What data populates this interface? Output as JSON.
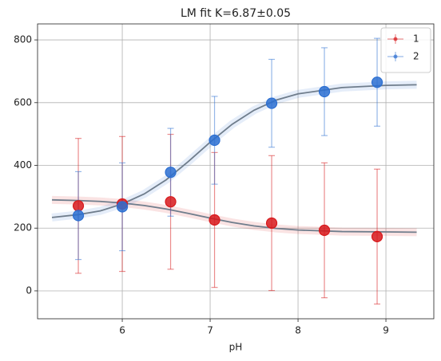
{
  "chart_data": {
    "type": "scatter",
    "title": "LM fit K=6.87±0.05",
    "x_label": "pH",
    "xlim": [
      5.036,
      9.545
    ],
    "ylim": [
      -89,
      851
    ],
    "xticks": [
      6,
      7,
      8,
      9
    ],
    "yticks": [
      0,
      200,
      400,
      600,
      800
    ],
    "grid": true,
    "legend": "upper right",
    "fit_color": "#6f7d8c",
    "fit_x": [
      5.2,
      5.5,
      5.75,
      6.0,
      6.25,
      6.5,
      6.75,
      7.0,
      7.25,
      7.5,
      7.75,
      8.0,
      8.5,
      9.0,
      9.35
    ],
    "x": [
      5.5,
      6.0,
      6.55,
      7.05,
      7.7,
      8.3,
      8.9
    ],
    "series": [
      {
        "name": "1",
        "color": "#d7191c",
        "values": [
          271,
          277,
          284,
          226,
          216,
          193,
          173
        ],
        "yerr": [
          215,
          215,
          215,
          215,
          215,
          215,
          215
        ],
        "fit": [
          290,
          288,
          285,
          280,
          272,
          261,
          247,
          232,
          218,
          207,
          199,
          194,
          189,
          188,
          187
        ]
      },
      {
        "name": "2",
        "color": "#2c6fd1",
        "values": [
          240,
          268,
          378,
          480,
          598,
          635,
          665
        ],
        "yerr": [
          140,
          140,
          140,
          140,
          140,
          140,
          140
        ],
        "fit": [
          234,
          243,
          255,
          277,
          309,
          354,
          412,
          474,
          531,
          576,
          608,
          628,
          648,
          655,
          657
        ]
      }
    ]
  }
}
